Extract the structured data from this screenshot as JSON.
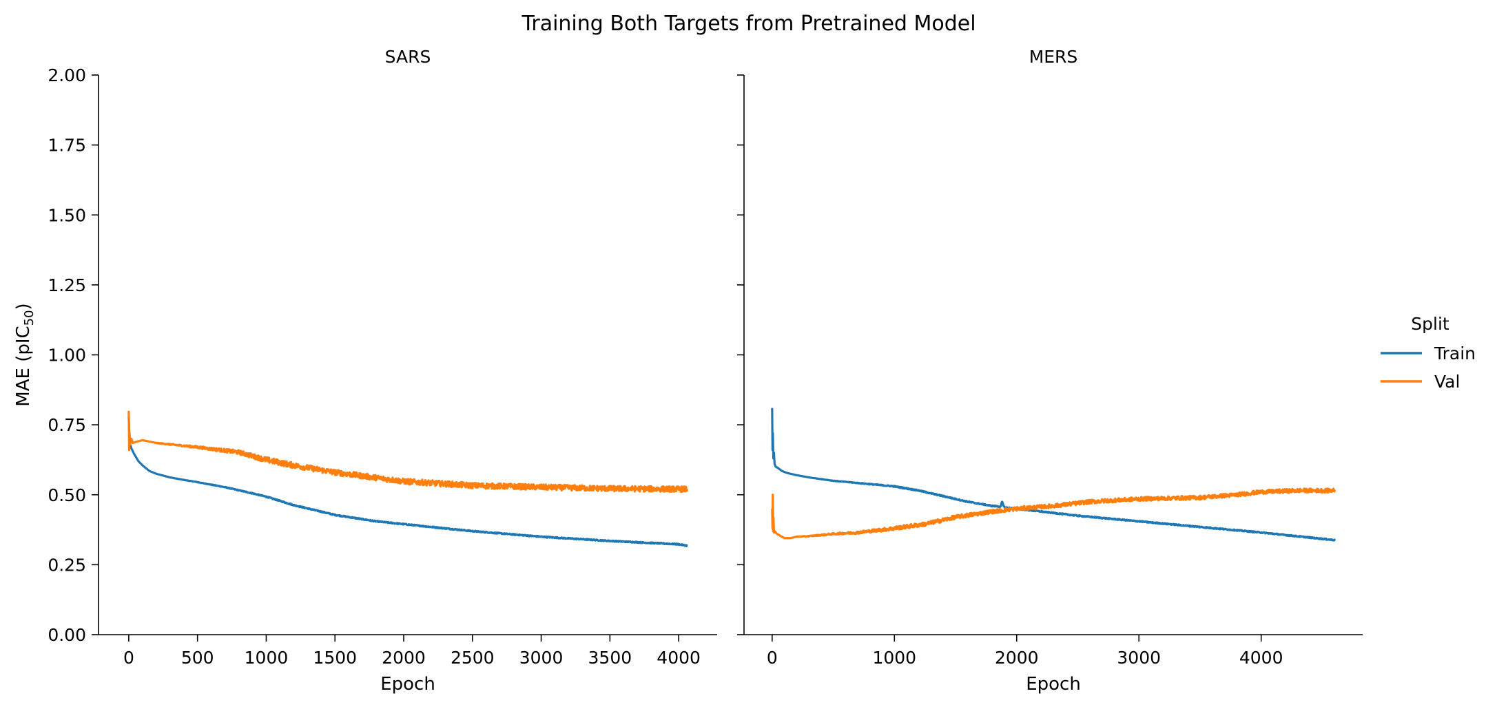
{
  "figure": {
    "title": "Training Both Targets from Pretrained Model"
  },
  "legend": {
    "title": "Split",
    "placement": "right",
    "entries": [
      {
        "label": "Train",
        "color": "#1f77b4"
      },
      {
        "label": "Val",
        "color": "#ff7f0e"
      }
    ]
  },
  "chart_data": [
    {
      "type": "line",
      "title": "SARS",
      "xlabel": "Epoch",
      "ylabel": "MAE (pIC50)",
      "ylabel_main": "MAE (pIC",
      "ylabel_sub": "50",
      "ylabel_end": ")",
      "xlim": [
        -220,
        4280
      ],
      "ylim": [
        0,
        2
      ],
      "xticks": [
        0,
        500,
        1000,
        1500,
        2000,
        2500,
        3000,
        3500,
        4000
      ],
      "xtick_labels": [
        "0",
        "500",
        "1000",
        "1500",
        "2000",
        "2500",
        "3000",
        "3500",
        "4000"
      ],
      "yticks": [
        0,
        0.25,
        0.5,
        0.75,
        1.0,
        1.25,
        1.5,
        1.75,
        2.0
      ],
      "ytick_labels": [
        "0.00",
        "0.25",
        "0.50",
        "0.75",
        "1.00",
        "1.25",
        "1.50",
        "1.75",
        "2.00"
      ],
      "grid": false,
      "series": [
        {
          "name": "Train",
          "color": "#1f77b4",
          "noise": 0.002,
          "x": [
            0,
            5,
            10,
            20,
            40,
            70,
            100,
            150,
            200,
            300,
            400,
            500,
            700,
            900,
            1000,
            1200,
            1500,
            1800,
            2000,
            2500,
            3000,
            3500,
            4000,
            4060
          ],
          "y": [
            0.78,
            0.7,
            0.68,
            0.665,
            0.645,
            0.62,
            0.605,
            0.585,
            0.575,
            0.562,
            0.553,
            0.545,
            0.527,
            0.505,
            0.493,
            0.463,
            0.428,
            0.405,
            0.395,
            0.37,
            0.35,
            0.335,
            0.323,
            0.318
          ]
        },
        {
          "name": "Val",
          "color": "#ff7f0e",
          "noise": 0.01,
          "x": [
            0,
            3,
            6,
            10,
            20,
            30,
            60,
            100,
            150,
            200,
            300,
            500,
            800,
            1000,
            1200,
            1500,
            2000,
            2500,
            3000,
            3500,
            4000,
            4060
          ],
          "y": [
            0.8,
            0.66,
            0.72,
            0.68,
            0.7,
            0.685,
            0.69,
            0.695,
            0.69,
            0.685,
            0.68,
            0.67,
            0.652,
            0.625,
            0.605,
            0.58,
            0.548,
            0.533,
            0.527,
            0.522,
            0.52,
            0.52
          ]
        }
      ]
    },
    {
      "type": "line",
      "title": "MERS",
      "xlabel": "Epoch",
      "xlim": [
        -230,
        4830
      ],
      "ylim": [
        0,
        2
      ],
      "xticks": [
        0,
        1000,
        2000,
        3000,
        4000
      ],
      "xtick_labels": [
        "0",
        "1000",
        "2000",
        "3000",
        "4000"
      ],
      "yticks": [
        0,
        0.25,
        0.5,
        0.75,
        1.0,
        1.25,
        1.5,
        1.75,
        2.0
      ],
      "grid": false,
      "series": [
        {
          "name": "Train",
          "color": "#1f77b4",
          "noise": 0.002,
          "x": [
            0,
            3,
            6,
            10,
            15,
            20,
            30,
            50,
            80,
            120,
            200,
            300,
            500,
            700,
            1000,
            1200,
            1400,
            1600,
            1800,
            1870,
            1880,
            1890,
            1900,
            2000,
            2500,
            3000,
            3500,
            4000,
            4600
          ],
          "y": [
            0.81,
            0.66,
            0.72,
            0.63,
            0.65,
            0.61,
            0.6,
            0.595,
            0.585,
            0.578,
            0.57,
            0.562,
            0.55,
            0.542,
            0.53,
            0.515,
            0.495,
            0.475,
            0.46,
            0.458,
            0.475,
            0.465,
            0.455,
            0.45,
            0.425,
            0.405,
            0.385,
            0.365,
            0.338
          ]
        },
        {
          "name": "Val",
          "color": "#ff7f0e",
          "noise": 0.007,
          "x": [
            0,
            3,
            5,
            8,
            10,
            15,
            20,
            40,
            60,
            100,
            150,
            200,
            300,
            500,
            700,
            1000,
            1250,
            1500,
            1800,
            2000,
            2300,
            2600,
            3000,
            3500,
            3800,
            4000,
            4300,
            4600
          ],
          "y": [
            0.45,
            0.38,
            0.5,
            0.37,
            0.42,
            0.365,
            0.37,
            0.36,
            0.355,
            0.345,
            0.345,
            0.35,
            0.352,
            0.36,
            0.365,
            0.38,
            0.395,
            0.42,
            0.44,
            0.45,
            0.46,
            0.475,
            0.485,
            0.49,
            0.5,
            0.51,
            0.515,
            0.515
          ]
        }
      ]
    }
  ]
}
